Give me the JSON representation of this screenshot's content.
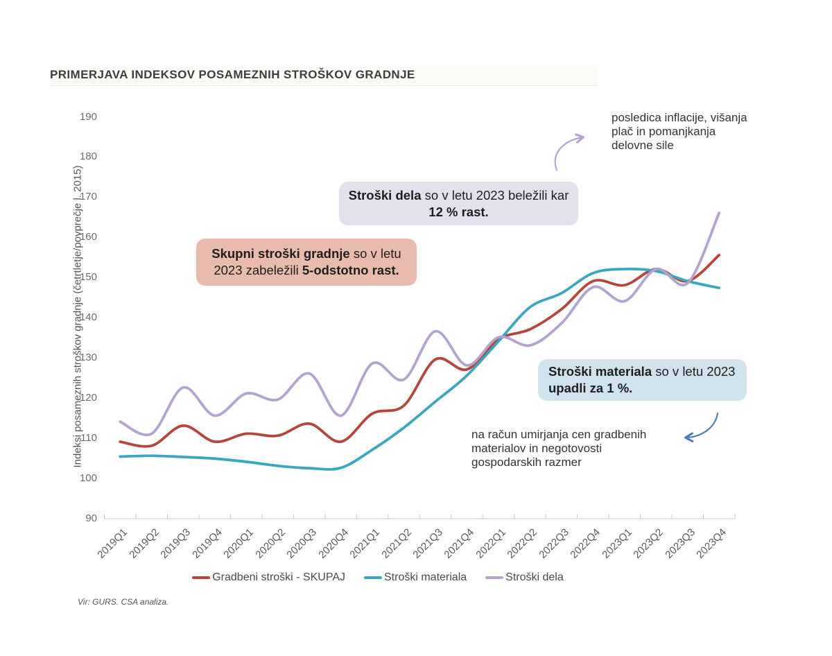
{
  "title": "PRIMERJAVA INDEKSOV POSAMEZNIH STROŠKOV GRADNJE",
  "source": "Vir: GURS. CSA analiza.",
  "annotations": {
    "labor_note": {
      "bg": "#e5e0ed",
      "segments": [
        {
          "text": "Stroški dela",
          "bold": true
        },
        {
          "text": " so v letu 2023 beležili kar ",
          "bold": false
        },
        {
          "text": "12 % rast.",
          "bold": true
        }
      ]
    },
    "total_note": {
      "bg": "#e9baae",
      "segments": [
        {
          "text": "Skupni stroški gradnje",
          "bold": true
        },
        {
          "text": " so v letu 2023 zabeležili ",
          "bold": false
        },
        {
          "text": "5-odstotno rast.",
          "bold": true
        }
      ]
    },
    "material_note": {
      "bg": "#d0e3ec",
      "segments": [
        {
          "text": "Stroški materiala",
          "bold": true
        },
        {
          "text": " so v letu 2023 ",
          "bold": false
        },
        {
          "text": "upadli za 1 %.",
          "bold": true
        }
      ]
    },
    "labor_cause": "posledica inflacije, višanja plač in pomanjkanja delovne sile",
    "labor_cause_arrow": {
      "color": "#b3a1d9"
    },
    "material_cause": "na račun umirjanja cen gradbenih materialov in negotovosti gospodarskih razmer",
    "material_cause_arrow": {
      "color": "#4a7dbd"
    }
  },
  "chart_data": {
    "type": "line",
    "title": "PRIMERJAVA INDEKSOV POSAMEZNIH STROŠKOV GRADNJE",
    "xlabel": "",
    "ylabel": "Indeksi posameznih stroškov gradnje (četrtletje/povprečje l. 2015)",
    "ylim": [
      90,
      190
    ],
    "yticks": [
      90,
      100,
      110,
      120,
      130,
      140,
      150,
      160,
      170,
      180,
      190
    ],
    "grid": false,
    "legend_position": "bottom",
    "categories": [
      "2019Q1",
      "2019Q2",
      "2019Q3",
      "2019Q4",
      "2020Q1",
      "2020Q2",
      "2020Q3",
      "2020Q4",
      "2021Q1",
      "2021Q2",
      "2021Q3",
      "2021Q4",
      "2022Q1",
      "2022Q2",
      "2022Q3",
      "2022Q4",
      "2023Q1",
      "2023Q2",
      "2023Q3",
      "2023Q4"
    ],
    "series": [
      {
        "name": "Gradbeni stroški - SKUPAJ",
        "color": "#b5463a",
        "values": [
          109,
          108,
          113,
          109,
          111,
          110.5,
          113.5,
          109,
          116,
          118,
          129.5,
          127,
          134.5,
          137,
          142,
          149,
          148,
          152,
          149,
          155.5
        ]
      },
      {
        "name": "Stroški materiala",
        "color": "#3aa6c0",
        "values": [
          105.3,
          105.5,
          105.2,
          104.8,
          104,
          103,
          102.4,
          102.5,
          107,
          112.5,
          119,
          125.5,
          134,
          142.5,
          146,
          151,
          152,
          151.5,
          149,
          147.3
        ]
      },
      {
        "name": "Stroški dela",
        "color": "#b4a3d0",
        "values": [
          114,
          111,
          122.5,
          115.5,
          121,
          119.5,
          126,
          115.5,
          128.5,
          124.5,
          136.5,
          128,
          135,
          133,
          138.5,
          147.5,
          144,
          152,
          148.5,
          166
        ]
      }
    ]
  }
}
